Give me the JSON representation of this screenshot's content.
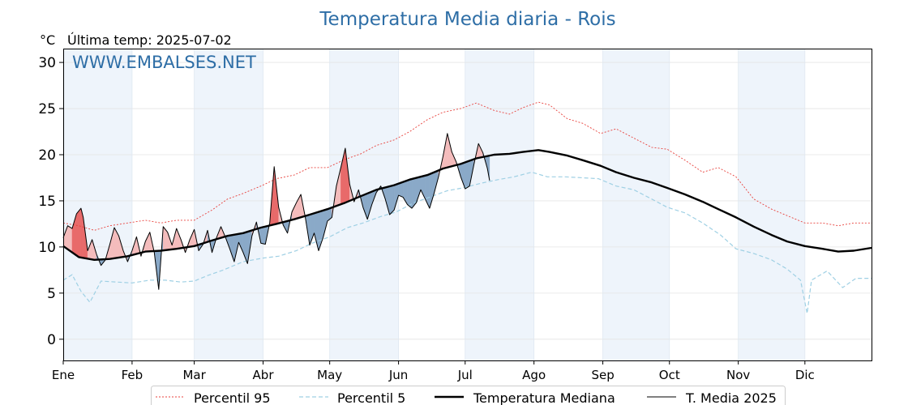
{
  "chart_data": {
    "type": "line",
    "title": "Temperatura Media diaria - Rois",
    "unit_label": "°C",
    "last_temp_label": "Última temp: 2025-07-02",
    "watermark": "WWW.EMBALSES.NET",
    "xlabel": "",
    "ylabel": "",
    "ylim": [
      -2.3,
      31.5
    ],
    "yticks": [
      0,
      5,
      10,
      15,
      20,
      25,
      30
    ],
    "months": [
      "Ene",
      "Feb",
      "Mar",
      "Abr",
      "May",
      "Jun",
      "Jul",
      "Ago",
      "Sep",
      "Oct",
      "Nov",
      "Dic"
    ],
    "grid": true,
    "legend_position": "bottom-center",
    "colors": {
      "p95": "#e8413c",
      "p5": "#9fd0e4",
      "median": "#000000",
      "current": "#000000",
      "fill_above": "#f4bcbc",
      "fill_above_strong": "#e86a6a",
      "fill_below": "#8aa9c8",
      "band_shade": "#eef4fb"
    },
    "series": [
      {
        "name": "Percentil 95",
        "style": "dotted",
        "points": [
          [
            1,
            12.6
          ],
          [
            8,
            12.3
          ],
          [
            15,
            11.8
          ],
          [
            22,
            12.3
          ],
          [
            30,
            12.6
          ],
          [
            38,
            12.9
          ],
          [
            45,
            12.6
          ],
          [
            52,
            12.9
          ],
          [
            60,
            12.9
          ],
          [
            68,
            14.0
          ],
          [
            75,
            15.2
          ],
          [
            82,
            15.8
          ],
          [
            90,
            16.6
          ],
          [
            97,
            17.4
          ],
          [
            105,
            17.8
          ],
          [
            112,
            18.6
          ],
          [
            120,
            18.6
          ],
          [
            128,
            19.5
          ],
          [
            135,
            20.1
          ],
          [
            142,
            21.0
          ],
          [
            150,
            21.6
          ],
          [
            157,
            22.5
          ],
          [
            165,
            23.8
          ],
          [
            172,
            24.6
          ],
          [
            180,
            25.0
          ],
          [
            187,
            25.6
          ],
          [
            195,
            24.8
          ],
          [
            202,
            24.4
          ],
          [
            208,
            25.1
          ],
          [
            215,
            25.7
          ],
          [
            220,
            25.4
          ],
          [
            228,
            23.9
          ],
          [
            235,
            23.4
          ],
          [
            243,
            22.3
          ],
          [
            250,
            22.8
          ],
          [
            258,
            21.8
          ],
          [
            266,
            20.8
          ],
          [
            273,
            20.6
          ],
          [
            281,
            19.4
          ],
          [
            289,
            18.1
          ],
          [
            296,
            18.6
          ],
          [
            304,
            17.6
          ],
          [
            312,
            15.2
          ],
          [
            320,
            14.1
          ],
          [
            327,
            13.4
          ],
          [
            335,
            12.6
          ],
          [
            343,
            12.6
          ],
          [
            350,
            12.3
          ],
          [
            357,
            12.6
          ],
          [
            365,
            12.6
          ]
        ]
      },
      {
        "name": "Percentil 5",
        "style": "dashed",
        "points": [
          [
            1,
            6.4
          ],
          [
            5,
            7.0
          ],
          [
            9,
            5.2
          ],
          [
            13,
            4.0
          ],
          [
            18,
            6.3
          ],
          [
            25,
            6.2
          ],
          [
            32,
            6.1
          ],
          [
            40,
            6.4
          ],
          [
            47,
            6.4
          ],
          [
            54,
            6.2
          ],
          [
            60,
            6.3
          ],
          [
            66,
            6.9
          ],
          [
            73,
            7.5
          ],
          [
            82,
            8.4
          ],
          [
            91,
            8.8
          ],
          [
            98,
            9.0
          ],
          [
            106,
            9.6
          ],
          [
            113,
            10.4
          ],
          [
            121,
            11.1
          ],
          [
            129,
            12.1
          ],
          [
            136,
            12.6
          ],
          [
            144,
            13.3
          ],
          [
            151,
            13.8
          ],
          [
            159,
            14.8
          ],
          [
            166,
            15.4
          ],
          [
            174,
            16.1
          ],
          [
            181,
            16.4
          ],
          [
            189,
            16.9
          ],
          [
            197,
            17.3
          ],
          [
            204,
            17.6
          ],
          [
            212,
            18.1
          ],
          [
            219,
            17.6
          ],
          [
            227,
            17.6
          ],
          [
            235,
            17.5
          ],
          [
            242,
            17.4
          ],
          [
            250,
            16.6
          ],
          [
            258,
            16.2
          ],
          [
            266,
            15.2
          ],
          [
            273,
            14.3
          ],
          [
            281,
            13.7
          ],
          [
            289,
            12.6
          ],
          [
            297,
            11.3
          ],
          [
            304,
            9.8
          ],
          [
            312,
            9.3
          ],
          [
            320,
            8.6
          ],
          [
            327,
            7.6
          ],
          [
            333,
            6.4
          ],
          [
            336,
            2.8
          ],
          [
            338,
            6.4
          ],
          [
            345,
            7.4
          ],
          [
            352,
            5.6
          ],
          [
            358,
            6.6
          ],
          [
            365,
            6.6
          ]
        ]
      },
      {
        "name": "Temperatura Mediana",
        "style": "solid-thick",
        "points": [
          [
            1,
            10.1
          ],
          [
            8,
            8.9
          ],
          [
            15,
            8.6
          ],
          [
            22,
            8.7
          ],
          [
            30,
            9.0
          ],
          [
            38,
            9.5
          ],
          [
            45,
            9.6
          ],
          [
            52,
            9.8
          ],
          [
            60,
            10.1
          ],
          [
            68,
            10.7
          ],
          [
            75,
            11.2
          ],
          [
            82,
            11.5
          ],
          [
            90,
            12.1
          ],
          [
            97,
            12.5
          ],
          [
            105,
            13.0
          ],
          [
            112,
            13.5
          ],
          [
            120,
            14.1
          ],
          [
            128,
            14.8
          ],
          [
            135,
            15.5
          ],
          [
            142,
            16.2
          ],
          [
            150,
            16.7
          ],
          [
            157,
            17.3
          ],
          [
            165,
            17.8
          ],
          [
            172,
            18.5
          ],
          [
            180,
            19.0
          ],
          [
            187,
            19.6
          ],
          [
            195,
            20.0
          ],
          [
            202,
            20.1
          ],
          [
            208,
            20.3
          ],
          [
            215,
            20.5
          ],
          [
            220,
            20.3
          ],
          [
            228,
            19.9
          ],
          [
            235,
            19.4
          ],
          [
            243,
            18.8
          ],
          [
            250,
            18.1
          ],
          [
            258,
            17.5
          ],
          [
            266,
            17.0
          ],
          [
            273,
            16.4
          ],
          [
            281,
            15.7
          ],
          [
            289,
            14.9
          ],
          [
            296,
            14.1
          ],
          [
            304,
            13.2
          ],
          [
            312,
            12.2
          ],
          [
            320,
            11.3
          ],
          [
            327,
            10.6
          ],
          [
            335,
            10.1
          ],
          [
            343,
            9.8
          ],
          [
            350,
            9.5
          ],
          [
            357,
            9.6
          ],
          [
            365,
            9.9
          ]
        ]
      },
      {
        "name": "T. Media 2025",
        "style": "solid-thin",
        "points": [
          [
            1,
            11.0
          ],
          [
            3,
            12.3
          ],
          [
            5,
            12.0
          ],
          [
            7,
            13.6
          ],
          [
            9,
            14.2
          ],
          [
            10,
            13.2
          ],
          [
            12,
            9.6
          ],
          [
            14,
            10.8
          ],
          [
            16,
            9.2
          ],
          [
            18,
            8.0
          ],
          [
            20,
            8.6
          ],
          [
            22,
            10.3
          ],
          [
            24,
            12.1
          ],
          [
            26,
            11.2
          ],
          [
            28,
            9.6
          ],
          [
            30,
            8.4
          ],
          [
            32,
            9.6
          ],
          [
            34,
            11.1
          ],
          [
            36,
            9.0
          ],
          [
            38,
            10.6
          ],
          [
            40,
            11.6
          ],
          [
            42,
            9.4
          ],
          [
            44,
            5.4
          ],
          [
            46,
            12.2
          ],
          [
            48,
            11.6
          ],
          [
            50,
            10.2
          ],
          [
            52,
            12.0
          ],
          [
            54,
            10.8
          ],
          [
            56,
            9.4
          ],
          [
            58,
            10.8
          ],
          [
            60,
            11.9
          ],
          [
            62,
            9.6
          ],
          [
            64,
            10.3
          ],
          [
            66,
            11.8
          ],
          [
            68,
            9.4
          ],
          [
            70,
            11.0
          ],
          [
            72,
            12.2
          ],
          [
            74,
            11.1
          ],
          [
            76,
            9.8
          ],
          [
            78,
            8.4
          ],
          [
            80,
            10.5
          ],
          [
            82,
            9.4
          ],
          [
            84,
            8.2
          ],
          [
            86,
            11.2
          ],
          [
            88,
            12.7
          ],
          [
            90,
            10.4
          ],
          [
            92,
            10.3
          ],
          [
            94,
            12.6
          ],
          [
            96,
            18.7
          ],
          [
            98,
            14.3
          ],
          [
            100,
            12.4
          ],
          [
            102,
            11.5
          ],
          [
            104,
            13.8
          ],
          [
            106,
            14.8
          ],
          [
            108,
            15.7
          ],
          [
            110,
            13.2
          ],
          [
            112,
            10.2
          ],
          [
            114,
            11.5
          ],
          [
            116,
            9.6
          ],
          [
            118,
            11.0
          ],
          [
            120,
            12.8
          ],
          [
            122,
            13.2
          ],
          [
            124,
            16.6
          ],
          [
            126,
            18.6
          ],
          [
            128,
            20.7
          ],
          [
            130,
            16.8
          ],
          [
            132,
            14.9
          ],
          [
            134,
            16.2
          ],
          [
            136,
            14.3
          ],
          [
            138,
            13.0
          ],
          [
            140,
            14.6
          ],
          [
            142,
            15.9
          ],
          [
            144,
            16.6
          ],
          [
            146,
            15.2
          ],
          [
            148,
            13.5
          ],
          [
            150,
            14.0
          ],
          [
            152,
            15.6
          ],
          [
            154,
            15.4
          ],
          [
            156,
            14.6
          ],
          [
            158,
            14.2
          ],
          [
            160,
            14.8
          ],
          [
            162,
            16.2
          ],
          [
            164,
            15.2
          ],
          [
            166,
            14.2
          ],
          [
            168,
            15.8
          ],
          [
            170,
            17.6
          ],
          [
            172,
            19.8
          ],
          [
            174,
            22.3
          ],
          [
            176,
            20.3
          ],
          [
            178,
            19.2
          ],
          [
            180,
            17.6
          ],
          [
            182,
            16.3
          ],
          [
            184,
            16.6
          ],
          [
            186,
            19.0
          ],
          [
            188,
            21.2
          ],
          [
            190,
            20.2
          ],
          [
            192,
            18.5
          ],
          [
            193,
            17.2
          ]
        ]
      }
    ]
  },
  "legend": {
    "p95": "Percentil 95",
    "p5": "Percentil 5",
    "median": "Temperatura Mediana",
    "current": "T. Media 2025"
  }
}
